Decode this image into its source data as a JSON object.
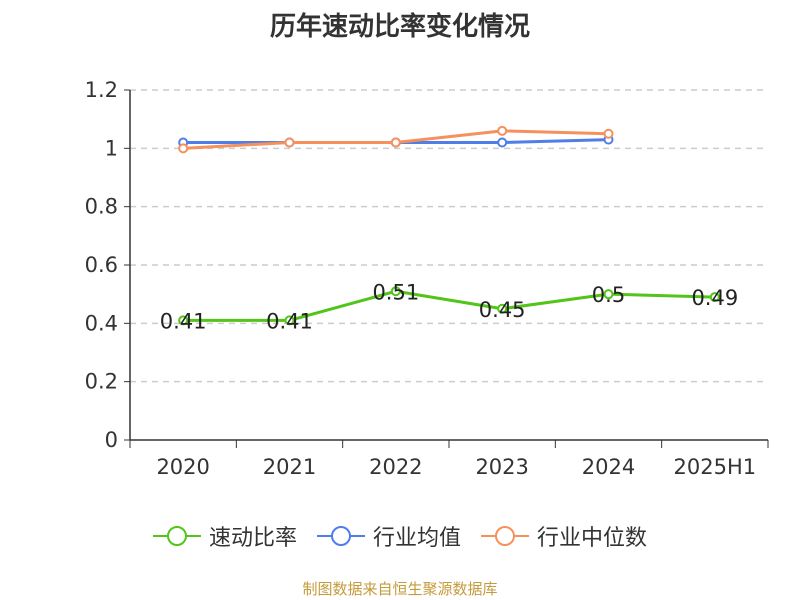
{
  "chart_data": {
    "type": "line",
    "title": "历年速动比率变化情况",
    "categories": [
      "2020",
      "2021",
      "2022",
      "2023",
      "2024",
      "2025H1"
    ],
    "y_ticks": [
      "0",
      "0.2",
      "0.4",
      "0.6",
      "0.8",
      "1",
      "1.2"
    ],
    "ylim": [
      0,
      1.2
    ],
    "grid": true,
    "legend_position": "bottom",
    "series": [
      {
        "name": "速动比率",
        "color": "#52c41a",
        "values": [
          0.41,
          0.41,
          0.51,
          0.45,
          0.5,
          0.49
        ],
        "labels": [
          "0.41",
          "0.41",
          "0.51",
          "0.45",
          "0.5",
          "0.49"
        ]
      },
      {
        "name": "行业均值",
        "color": "#4f7ee8",
        "values": [
          1.02,
          1.02,
          1.02,
          1.02,
          1.03,
          null
        ]
      },
      {
        "name": "行业中位数",
        "color": "#f5915c",
        "values": [
          1.0,
          1.02,
          1.02,
          1.06,
          1.05,
          null
        ]
      }
    ]
  },
  "source": "制图数据来自恒生聚源数据库"
}
